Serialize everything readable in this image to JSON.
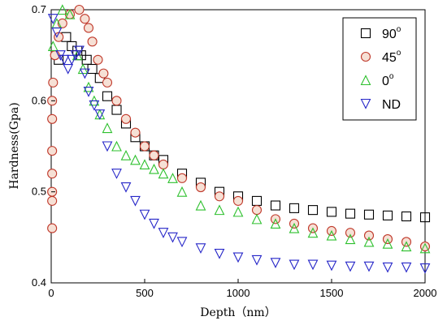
{
  "chart_data": {
    "type": "scatter",
    "xlabel": "Depth（nm）",
    "ylabel": "Hardness(Gpa)",
    "xlim": [
      0,
      2000
    ],
    "ylim": [
      0.4,
      0.7
    ],
    "xticks": [
      0,
      500,
      1000,
      1500,
      2000
    ],
    "yticks": [
      0.4,
      0.5,
      0.6,
      0.7
    ],
    "grid": false,
    "legend_position": "top-right",
    "series": [
      {
        "name": "90",
        "name_superscript": "o",
        "marker": "square",
        "color": "#000000",
        "x": [
          40,
          80,
          110,
          140,
          160,
          190,
          220,
          260,
          300,
          350,
          400,
          450,
          500,
          550,
          600,
          700,
          800,
          900,
          1000,
          1100,
          1200,
          1300,
          1400,
          1500,
          1600,
          1700,
          1800,
          1900,
          2000
        ],
        "y": [
          0.645,
          0.67,
          0.66,
          0.655,
          0.65,
          0.645,
          0.635,
          0.625,
          0.605,
          0.59,
          0.575,
          0.56,
          0.55,
          0.54,
          0.535,
          0.52,
          0.51,
          0.5,
          0.495,
          0.49,
          0.485,
          0.482,
          0.48,
          0.478,
          0.476,
          0.475,
          0.474,
          0.473,
          0.472
        ]
      },
      {
        "name": "45",
        "name_superscript": "o",
        "marker": "circle",
        "color": "#c0392b",
        "x": [
          5,
          5,
          5,
          5,
          5,
          5,
          5,
          10,
          20,
          40,
          60,
          100,
          150,
          180,
          200,
          220,
          250,
          280,
          300,
          350,
          400,
          450,
          500,
          550,
          600,
          700,
          800,
          900,
          1000,
          1100,
          1200,
          1300,
          1400,
          1500,
          1600,
          1700,
          1800,
          1900,
          2000
        ],
        "y": [
          0.46,
          0.49,
          0.5,
          0.52,
          0.545,
          0.58,
          0.6,
          0.62,
          0.65,
          0.67,
          0.685,
          0.695,
          0.7,
          0.69,
          0.68,
          0.665,
          0.645,
          0.63,
          0.62,
          0.6,
          0.58,
          0.565,
          0.55,
          0.54,
          0.53,
          0.515,
          0.505,
          0.495,
          0.49,
          0.48,
          0.47,
          0.465,
          0.46,
          0.457,
          0.455,
          0.452,
          0.448,
          0.445,
          0.44
        ]
      },
      {
        "name": "0",
        "name_superscript": "o",
        "marker": "triangle-up",
        "color": "#2ec02e",
        "x": [
          10,
          30,
          60,
          100,
          140,
          170,
          200,
          230,
          260,
          300,
          350,
          400,
          450,
          500,
          550,
          600,
          650,
          700,
          800,
          900,
          1000,
          1100,
          1200,
          1300,
          1400,
          1500,
          1600,
          1700,
          1800,
          1900,
          2000
        ],
        "y": [
          0.66,
          0.685,
          0.7,
          0.695,
          0.65,
          0.635,
          0.615,
          0.6,
          0.585,
          0.57,
          0.55,
          0.54,
          0.535,
          0.53,
          0.525,
          0.52,
          0.515,
          0.5,
          0.485,
          0.48,
          0.478,
          0.47,
          0.465,
          0.46,
          0.455,
          0.452,
          0.448,
          0.445,
          0.443,
          0.44,
          0.438
        ]
      },
      {
        "name": "ND",
        "marker": "triangle-down",
        "color": "#2626c8",
        "x": [
          10,
          30,
          50,
          70,
          90,
          110,
          130,
          150,
          180,
          200,
          230,
          260,
          300,
          350,
          400,
          450,
          500,
          550,
          600,
          650,
          700,
          800,
          900,
          1000,
          1100,
          1200,
          1300,
          1400,
          1500,
          1600,
          1700,
          1800,
          1900,
          2000
        ],
        "y": [
          0.69,
          0.675,
          0.65,
          0.645,
          0.635,
          0.645,
          0.65,
          0.655,
          0.63,
          0.61,
          0.595,
          0.585,
          0.55,
          0.52,
          0.505,
          0.49,
          0.475,
          0.465,
          0.455,
          0.45,
          0.445,
          0.438,
          0.432,
          0.428,
          0.425,
          0.422,
          0.42,
          0.42,
          0.419,
          0.418,
          0.418,
          0.417,
          0.417,
          0.416
        ]
      }
    ]
  }
}
